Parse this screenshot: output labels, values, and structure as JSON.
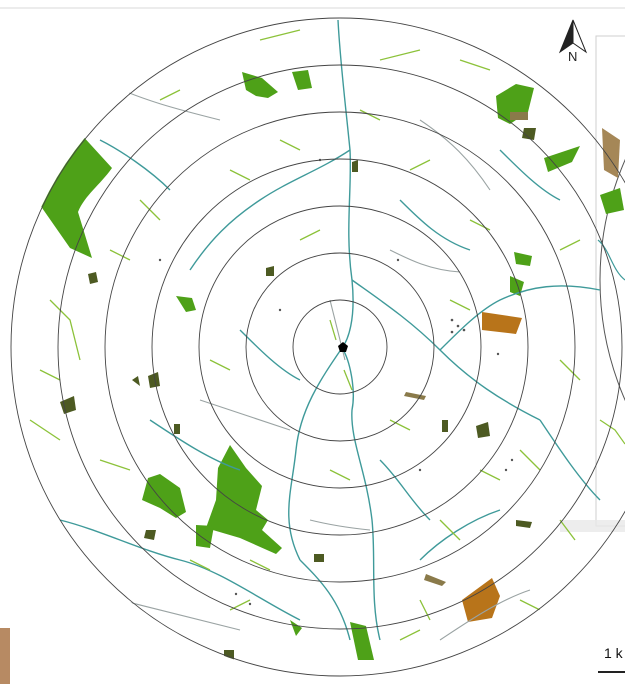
{
  "map": {
    "north_label": "N",
    "scale_label": "1 k",
    "ring_count": 7,
    "colors": {
      "forest": "#4ea118",
      "hedgerow": "#8cc23a",
      "stream": "#3f9a9a",
      "road": "#9aa3a3",
      "dark_patch": "#4d5a22",
      "brown_patch": "#b8741a",
      "centre_marker": "#000000",
      "ring": "#444444"
    },
    "icons": {
      "north": "north-arrow-icon",
      "centre": "study-site-pentagon-icon"
    }
  }
}
